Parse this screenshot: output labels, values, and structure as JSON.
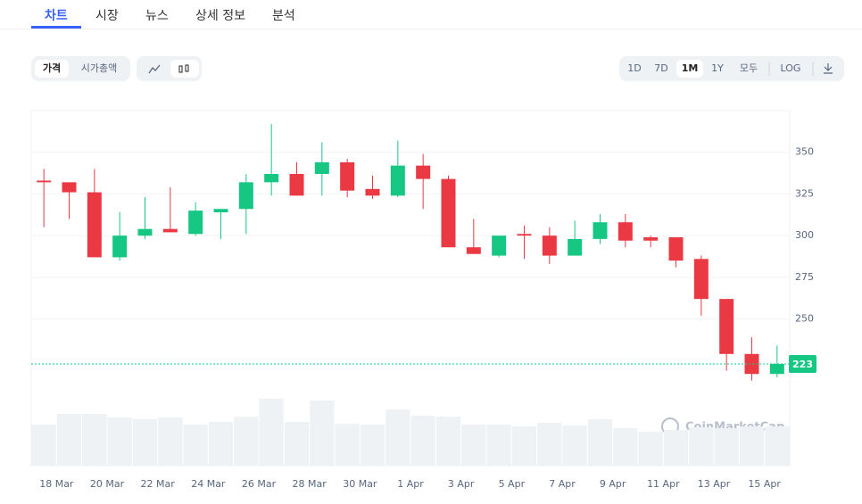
{
  "tabs": [
    "차트",
    "시장",
    "뉴스",
    "상세 정보",
    "분석"
  ],
  "toolbar": {
    "left": [
      "가격",
      "시가총액"
    ],
    "right": [
      "1D",
      "7D",
      "1M",
      "1Y",
      "모두",
      "LOG"
    ]
  },
  "watermark": "CoinMarketCap",
  "chart_data": {
    "type": "candlestick",
    "x": [
      0.5,
      1.5,
      2.5,
      3.5,
      4.5,
      5.5,
      6.5,
      7.5,
      8.5,
      9.5,
      10.5,
      11.5,
      12.5,
      13.5,
      14.5,
      15.5,
      16.5,
      17.5,
      18.5,
      19.5,
      20.5,
      21.5,
      22.5,
      23.5,
      24.5,
      25.5,
      26.5,
      27.5,
      28.5,
      29.5
    ],
    "open": [
      333,
      332,
      326,
      287,
      300,
      304,
      301,
      314,
      316,
      332,
      337,
      337,
      344,
      328,
      324,
      342,
      334,
      293,
      288,
      301,
      300,
      288,
      298,
      308,
      299,
      299,
      286,
      262,
      229,
      217
    ],
    "high": [
      340,
      332,
      340,
      314,
      323,
      329,
      320,
      316,
      337,
      367,
      344,
      356,
      346,
      336,
      357,
      349,
      336,
      310,
      300,
      306,
      305,
      309,
      313,
      313,
      300,
      299,
      288,
      262,
      239,
      234
    ],
    "low": [
      305,
      310,
      287,
      285,
      298,
      302,
      300,
      298,
      301,
      324,
      324,
      324,
      323,
      322,
      323,
      316,
      293,
      289,
      287,
      286,
      283,
      288,
      295,
      293,
      293,
      281,
      252,
      219,
      213,
      215
    ],
    "close": [
      332,
      326,
      287,
      300,
      304,
      302,
      315,
      316,
      332,
      337,
      324,
      344,
      327,
      324,
      342,
      334,
      293,
      289,
      300,
      300,
      288,
      298,
      308,
      297,
      297,
      285,
      262,
      229,
      217,
      223
    ],
    "volume": [
      46,
      58,
      58,
      54,
      52,
      54,
      46,
      49,
      55,
      75,
      49,
      73,
      47,
      46,
      63,
      56,
      55,
      46,
      46,
      44,
      48,
      45,
      52,
      42,
      38,
      40,
      43,
      42,
      44,
      44
    ],
    "volume_lim": [
      0,
      100
    ],
    "up_color": "#16c784",
    "down_color": "#ea3943",
    "volume_color": "#eff2f5",
    "last_price": 223,
    "xlim": [
      0,
      30
    ],
    "xticks": [
      {
        "value": 1,
        "label": "18 Mar"
      },
      {
        "value": 3,
        "label": "20 Mar"
      },
      {
        "value": 5,
        "label": "22 Mar"
      },
      {
        "value": 7,
        "label": "24 Mar"
      },
      {
        "value": 9,
        "label": "26 Mar"
      },
      {
        "value": 11,
        "label": "28 Mar"
      },
      {
        "value": 13,
        "label": "30 Mar"
      },
      {
        "value": 15,
        "label": "1 Apr"
      },
      {
        "value": 17,
        "label": "3 Apr"
      },
      {
        "value": 19,
        "label": "5 Apr"
      },
      {
        "value": 21,
        "label": "7 Apr"
      },
      {
        "value": 23,
        "label": "9 Apr"
      },
      {
        "value": 25,
        "label": "11 Apr"
      },
      {
        "value": 27,
        "label": "13 Apr"
      },
      {
        "value": 29,
        "label": "15 Apr"
      }
    ],
    "ylim": [
      162,
      375
    ],
    "yticks": [
      250,
      275,
      300,
      325,
      350
    ],
    "grid": true
  }
}
